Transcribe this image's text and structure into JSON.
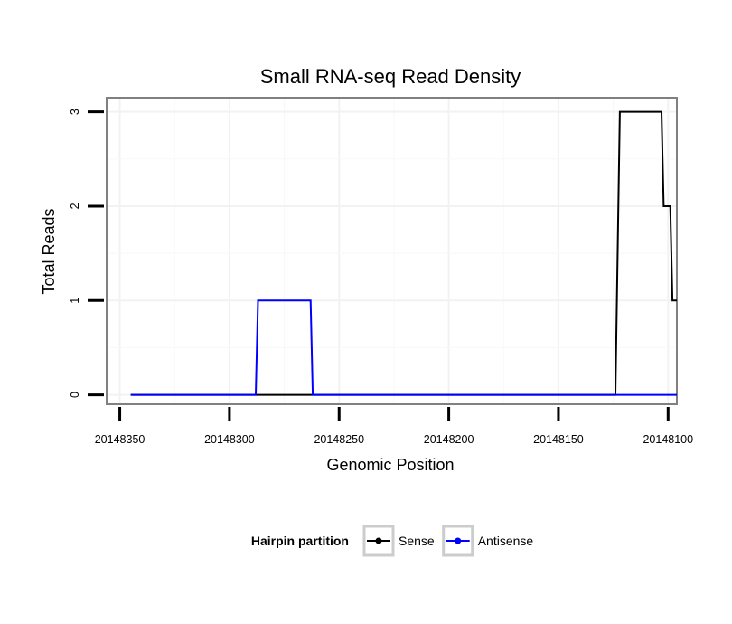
{
  "chart_data": {
    "type": "line",
    "title": "Small RNA-seq Read Density",
    "xlabel": "Genomic Position",
    "ylabel": "Total Reads",
    "x_reversed": true,
    "xlim": [
      20148356,
      20148096
    ],
    "ylim": [
      -0.1,
      3.15
    ],
    "x_ticks": [
      20148350,
      20148300,
      20148250,
      20148200,
      20148150,
      20148100
    ],
    "x_tick_labels": [
      "20148350",
      "20148300",
      "20148250",
      "20148200",
      "20148150",
      "20148100"
    ],
    "y_ticks": [
      0,
      1,
      2,
      3
    ],
    "y_tick_labels": [
      "0",
      "1",
      "2",
      "3"
    ],
    "grid": true,
    "legend": {
      "title": "Hairpin partition",
      "position": "bottom"
    },
    "series": [
      {
        "name": "Sense",
        "color": "#000000",
        "x": [
          20148345,
          20148124,
          20148122,
          20148103,
          20148102,
          20148099,
          20148098,
          20148096
        ],
        "y": [
          0,
          0,
          3,
          3,
          2,
          2,
          1,
          1
        ]
      },
      {
        "name": "Antisense",
        "color": "#0000ff",
        "x": [
          20148345,
          20148288,
          20148287,
          20148263,
          20148262,
          20148096
        ],
        "y": [
          0,
          0,
          1,
          1,
          0,
          0
        ]
      }
    ]
  }
}
